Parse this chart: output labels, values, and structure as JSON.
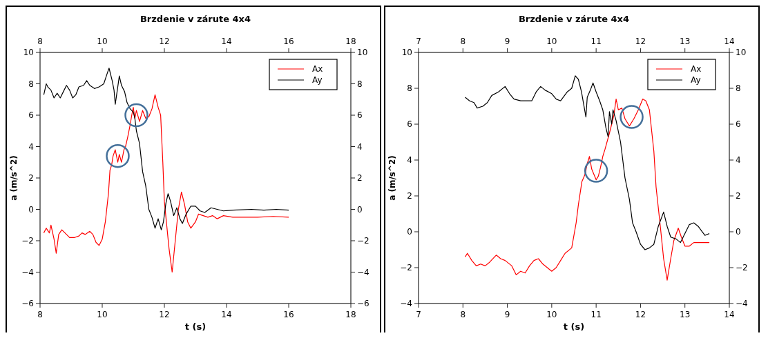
{
  "chart_data": [
    {
      "type": "line",
      "title": "Brzdenie v zárute 4x4",
      "xlabel": "t (s)",
      "ylabel": "a (m/s^2)",
      "xlim": [
        8,
        18
      ],
      "xticks": [
        8,
        10,
        12,
        14,
        16,
        18
      ],
      "x2lim": [
        8,
        18
      ],
      "x2ticks": [
        8,
        10,
        12,
        14,
        16,
        18
      ],
      "ylim": [
        -6,
        10
      ],
      "yticks": [
        -6,
        -4,
        -2,
        0,
        2,
        4,
        6,
        8,
        10
      ],
      "y2lim": [
        -6,
        10
      ],
      "y2ticks": [
        -6,
        -4,
        -2,
        0,
        2,
        4,
        6,
        8,
        10
      ],
      "legend": "top right",
      "grid": false,
      "line_style": "solid",
      "marker": "none",
      "series": [
        {
          "name": "Ax",
          "color": "#ff0000",
          "x": [
            8.12,
            8.2,
            8.3,
            8.35,
            8.45,
            8.52,
            8.6,
            8.7,
            8.8,
            8.95,
            9.1,
            9.25,
            9.35,
            9.45,
            9.6,
            9.7,
            9.8,
            9.9,
            10.0,
            10.1,
            10.2,
            10.25,
            10.3,
            10.35,
            10.42,
            10.5,
            10.55,
            10.62,
            10.7,
            10.75,
            10.82,
            10.9,
            10.95,
            11.0,
            11.05,
            11.1,
            11.2,
            11.3,
            11.4,
            11.5,
            11.6,
            11.7,
            11.8,
            11.88,
            11.95,
            12.0,
            12.05,
            12.15,
            12.25,
            12.35,
            12.45,
            12.55,
            12.65,
            12.75,
            12.85,
            13.0,
            13.1,
            13.25,
            13.4,
            13.55,
            13.7,
            13.9,
            14.2,
            14.6,
            15.0,
            15.5,
            16.0
          ],
          "values": [
            -1.5,
            -1.2,
            -1.5,
            -1.0,
            -1.9,
            -2.8,
            -1.6,
            -1.3,
            -1.5,
            -1.8,
            -1.8,
            -1.7,
            -1.5,
            -1.6,
            -1.4,
            -1.6,
            -2.1,
            -2.3,
            -1.9,
            -0.8,
            1.0,
            2.5,
            2.8,
            3.4,
            3.8,
            3.0,
            3.5,
            3.0,
            3.8,
            4.0,
            4.6,
            5.4,
            6.0,
            6.5,
            5.8,
            6.3,
            5.6,
            6.3,
            5.8,
            5.9,
            6.4,
            7.3,
            6.5,
            6.0,
            3.0,
            0.5,
            -0.5,
            -2.5,
            -4.0,
            -2.0,
            0,
            1.1,
            0.3,
            -0.8,
            -1.2,
            -0.8,
            -0.3,
            -0.4,
            -0.5,
            -0.4,
            -0.6,
            -0.4,
            -0.5,
            -0.5,
            -0.5,
            -0.45,
            -0.5
          ]
        },
        {
          "name": "Ay",
          "color": "#000000",
          "x": [
            8.12,
            8.2,
            8.25,
            8.35,
            8.45,
            8.55,
            8.65,
            8.75,
            8.85,
            8.95,
            9.05,
            9.15,
            9.25,
            9.4,
            9.5,
            9.6,
            9.75,
            9.9,
            10.05,
            10.15,
            10.22,
            10.32,
            10.38,
            10.42,
            10.5,
            10.55,
            10.62,
            10.72,
            10.8,
            10.9,
            11.0,
            11.05,
            11.1,
            11.2,
            11.3,
            11.4,
            11.5,
            11.6,
            11.7,
            11.8,
            11.9,
            11.97,
            12.05,
            12.12,
            12.2,
            12.3,
            12.4,
            12.5,
            12.58,
            12.7,
            12.85,
            13.0,
            13.15,
            13.3,
            13.5,
            13.7,
            13.9,
            14.2,
            14.8,
            15.2,
            15.6,
            16.0
          ],
          "values": [
            7.3,
            8.0,
            7.8,
            7.6,
            7.1,
            7.4,
            7.1,
            7.5,
            7.9,
            7.6,
            7.1,
            7.3,
            7.8,
            7.9,
            8.2,
            7.9,
            7.7,
            7.8,
            8.0,
            8.6,
            9.0,
            8.2,
            7.6,
            6.7,
            7.8,
            8.5,
            7.9,
            7.5,
            6.8,
            6.4,
            6.2,
            5.8,
            5.0,
            4.2,
            2.4,
            1.5,
            0,
            -0.5,
            -1.2,
            -0.6,
            -1.3,
            -0.8,
            0.4,
            1.0,
            0.5,
            -0.4,
            0.1,
            -0.6,
            -0.9,
            -0.3,
            0.2,
            0.2,
            -0.1,
            -0.2,
            0.1,
            0,
            -0.1,
            -0.05,
            0,
            -0.05,
            0,
            -0.05
          ]
        }
      ]
    },
    {
      "type": "line",
      "title": "Brzdenie v zárute 4x4",
      "xlabel": "t (s)",
      "ylabel": "a (m/s^2)",
      "xlim": [
        7,
        14
      ],
      "xticks": [
        7,
        8,
        9,
        10,
        11,
        12,
        13,
        14
      ],
      "x2lim": [
        7,
        14
      ],
      "x2ticks": [
        7,
        8,
        9,
        10,
        11,
        12,
        13,
        14
      ],
      "ylim": [
        -4,
        10
      ],
      "yticks": [
        -4,
        -2,
        0,
        2,
        4,
        6,
        8,
        10
      ],
      "y2lim": [
        -4,
        10
      ],
      "y2ticks": [
        -4,
        -2,
        0,
        2,
        4,
        6,
        8,
        10
      ],
      "legend": "top right",
      "grid": false,
      "line_style": "solid",
      "marker": "none",
      "series": [
        {
          "name": "Ax",
          "color": "#ff0000",
          "x": [
            8.05,
            8.1,
            8.2,
            8.3,
            8.4,
            8.5,
            8.6,
            8.75,
            8.85,
            8.95,
            9.1,
            9.2,
            9.3,
            9.4,
            9.5,
            9.6,
            9.7,
            9.8,
            9.9,
            10.0,
            10.1,
            10.2,
            10.3,
            10.45,
            10.55,
            10.6,
            10.68,
            10.75,
            10.8,
            10.85,
            10.9,
            10.95,
            11.0,
            11.05,
            11.1,
            11.15,
            11.2,
            11.3,
            11.4,
            11.45,
            11.5,
            11.58,
            11.65,
            11.75,
            11.85,
            11.95,
            12.05,
            12.12,
            12.2,
            12.3,
            12.35,
            12.45,
            12.52,
            12.6,
            12.68,
            12.75,
            12.85,
            12.92,
            13.0,
            13.1,
            13.2,
            13.35,
            13.55
          ],
          "values": [
            -1.4,
            -1.2,
            -1.6,
            -1.9,
            -1.8,
            -1.9,
            -1.7,
            -1.3,
            -1.5,
            -1.6,
            -1.9,
            -2.4,
            -2.2,
            -2.3,
            -1.9,
            -1.6,
            -1.5,
            -1.8,
            -2.0,
            -2.2,
            -2.0,
            -1.6,
            -1.2,
            -0.9,
            0.5,
            1.5,
            2.8,
            3.2,
            3.8,
            4.2,
            3.5,
            3.2,
            2.9,
            3.1,
            3.6,
            4.2,
            4.6,
            5.5,
            6.5,
            7.4,
            6.8,
            6.9,
            6.3,
            5.9,
            6.3,
            6.8,
            7.4,
            7.3,
            6.8,
            4.5,
            2.5,
            0.2,
            -1.5,
            -2.7,
            -1.5,
            -0.5,
            0.2,
            -0.3,
            -0.8,
            -0.8,
            -0.6,
            -0.6,
            -0.6
          ]
        },
        {
          "name": "Ay",
          "color": "#000000",
          "x": [
            8.05,
            8.15,
            8.25,
            8.32,
            8.45,
            8.55,
            8.65,
            8.8,
            8.95,
            9.05,
            9.15,
            9.3,
            9.45,
            9.55,
            9.65,
            9.75,
            9.85,
            10.0,
            10.1,
            10.2,
            10.35,
            10.45,
            10.53,
            10.6,
            10.67,
            10.72,
            10.77,
            10.8,
            10.87,
            10.93,
            11.0,
            11.08,
            11.15,
            11.22,
            11.27,
            11.3,
            11.35,
            11.38,
            11.45,
            11.55,
            11.65,
            11.75,
            11.82,
            11.9,
            12.0,
            12.1,
            12.2,
            12.3,
            12.4,
            12.52,
            12.6,
            12.68,
            12.8,
            12.9,
            13.0,
            13.1,
            13.2,
            13.3,
            13.45,
            13.55
          ],
          "values": [
            7.5,
            7.3,
            7.2,
            6.9,
            7.0,
            7.2,
            7.6,
            7.8,
            8.1,
            7.7,
            7.4,
            7.3,
            7.3,
            7.3,
            7.8,
            8.1,
            7.9,
            7.7,
            7.4,
            7.3,
            7.8,
            8.0,
            8.7,
            8.5,
            7.8,
            7.1,
            6.4,
            7.5,
            7.9,
            8.3,
            7.8,
            7.3,
            6.8,
            5.8,
            5.3,
            6.7,
            6.0,
            6.8,
            6.2,
            5.0,
            3.0,
            1.8,
            0.5,
            0,
            -0.7,
            -1.0,
            -0.9,
            -0.7,
            0.3,
            1.1,
            0.3,
            -0.3,
            -0.4,
            -0.6,
            -0.1,
            0.4,
            0.5,
            0.3,
            -0.2,
            -0.1
          ]
        }
      ]
    }
  ]
}
